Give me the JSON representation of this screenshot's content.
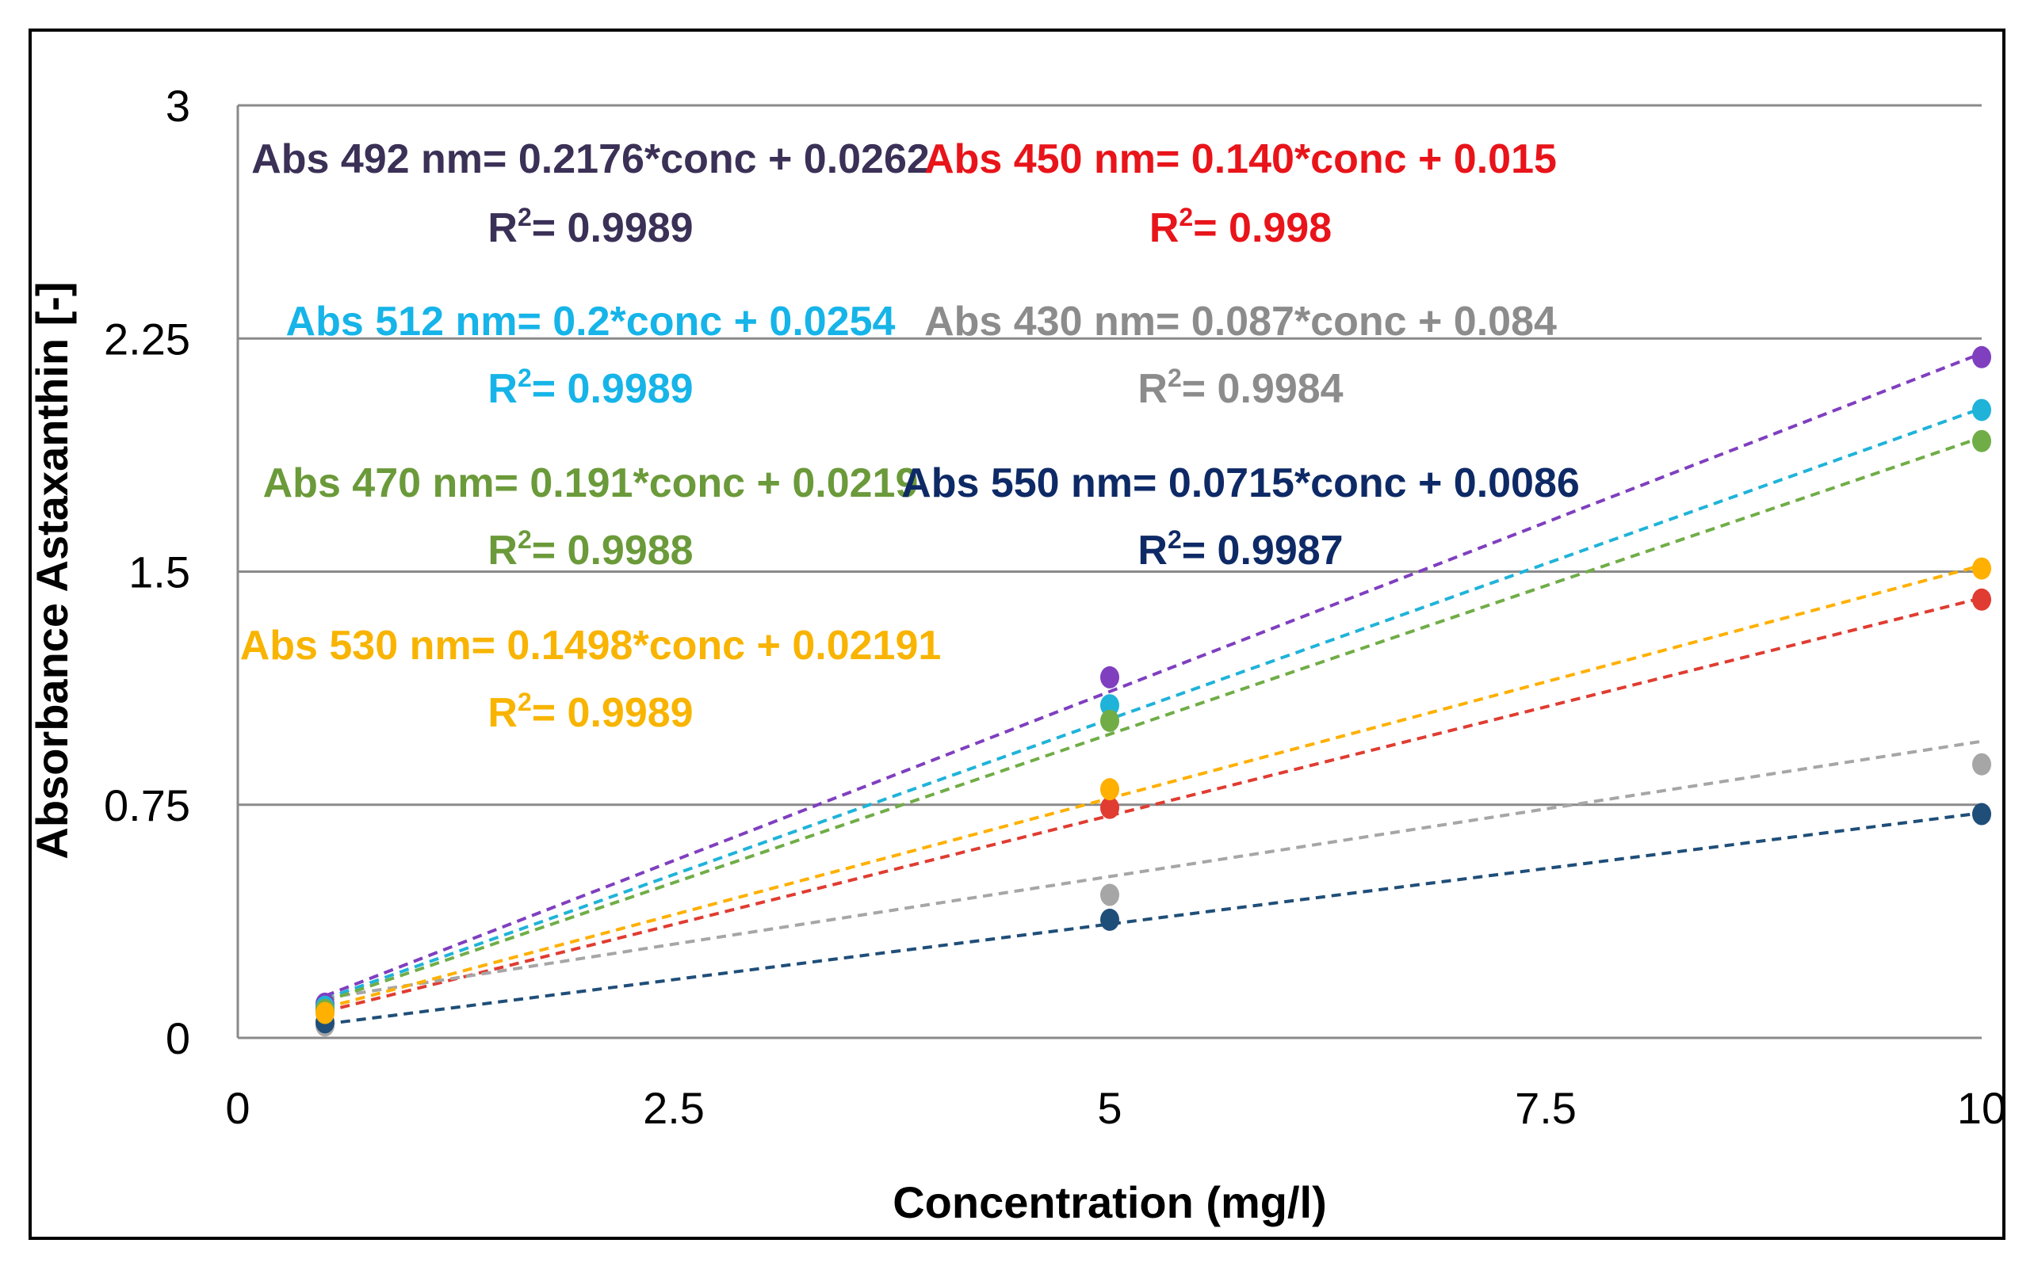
{
  "chart_data": {
    "type": "scatter",
    "xlabel": "Concentration (mg/l)",
    "ylabel": "Absorbance Astaxanthin [-]",
    "xlim": [
      0,
      10
    ],
    "ylim": [
      0,
      3
    ],
    "x_ticks": [
      "0",
      "2.5",
      "5",
      "7.5",
      "10"
    ],
    "y_ticks": [
      "0",
      "0.75",
      "1.5",
      "2.25",
      "3"
    ],
    "grid": "horizontal",
    "series": [
      {
        "name": "Abs 492 nm",
        "color": "#7f3fbf",
        "text_color": "#3b3056",
        "x": [
          0.5,
          5,
          10
        ],
        "y": [
          0.11,
          1.16,
          2.19
        ],
        "trend": {
          "slope": 0.2176,
          "intercept": 0.0262
        },
        "equation": "Abs 492 nm= 0.2176*conc + 0.0262",
        "r2": "= 0.9989"
      },
      {
        "name": "Abs 450 nm",
        "color": "#e03c31",
        "text_color": "#e8141a",
        "x": [
          0.5,
          5,
          10
        ],
        "y": [
          0.09,
          0.74,
          1.41
        ],
        "trend": {
          "slope": 0.14,
          "intercept": 0.015
        },
        "equation": "Abs 450 nm= 0.140*conc + 0.015",
        "r2": "= 0.998"
      },
      {
        "name": "Abs 512 nm",
        "color": "#1fb3d9",
        "text_color": "#16b4e8",
        "x": [
          0.5,
          5,
          10
        ],
        "y": [
          0.1,
          1.07,
          2.02
        ],
        "trend": {
          "slope": 0.2,
          "intercept": 0.0254
        },
        "equation": "Abs 512 nm= 0.2*conc + 0.0254",
        "r2": "= 0.9989"
      },
      {
        "name": "Abs 430 nm",
        "color": "#a6a6a6",
        "text_color": "#8c8c8c",
        "x": [
          0.5,
          5,
          10
        ],
        "y": [
          0.04,
          0.46,
          0.88
        ],
        "trend": {
          "slope": 0.087,
          "intercept": 0.084
        },
        "equation": "Abs 430 nm= 0.087*conc + 0.084",
        "r2": "= 0.9984"
      },
      {
        "name": "Abs 470 nm",
        "color": "#70ad47",
        "text_color": "#6b9a3a",
        "x": [
          0.5,
          5,
          10
        ],
        "y": [
          0.09,
          1.02,
          1.92
        ],
        "trend": {
          "slope": 0.191,
          "intercept": 0.0219
        },
        "equation": "Abs 470 nm= 0.191*conc + 0.0219",
        "r2": "= 0.9988"
      },
      {
        "name": "Abs 550 nm",
        "color": "#1f4e79",
        "text_color": "#0e2a66",
        "x": [
          0.5,
          5,
          10
        ],
        "y": [
          0.05,
          0.38,
          0.72
        ],
        "trend": {
          "slope": 0.0715,
          "intercept": 0.0086
        },
        "equation": "Abs 550 nm= 0.0715*conc + 0.0086",
        "r2": "= 0.9987"
      },
      {
        "name": "Abs 530 nm",
        "color": "#ffb000",
        "text_color": "#f8b400",
        "x": [
          0.5,
          5,
          10
        ],
        "y": [
          0.08,
          0.8,
          1.51
        ],
        "trend": {
          "slope": 0.1498,
          "intercept": 0.02191
        },
        "equation": "Abs 530 nm= 0.1498*conc + 0.02191",
        "r2": "= 0.9989"
      }
    ]
  }
}
